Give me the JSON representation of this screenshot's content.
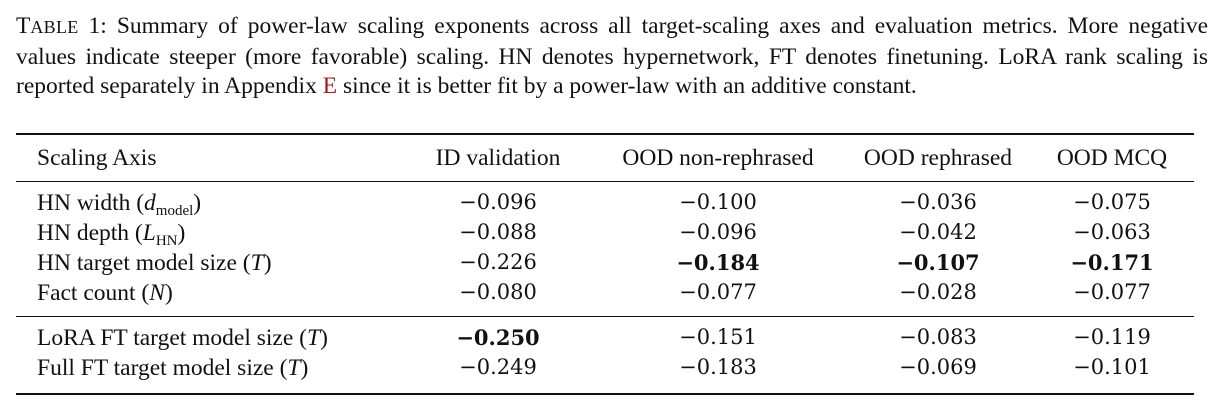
{
  "caption": {
    "label_first": "T",
    "label_rest": "ABLE",
    "label_num": "1:",
    "text_1": "Summary of power-law scaling exponents across all target-scaling axes and evaluation metrics. More negative values indicate steeper (more favorable) scaling. HN denotes hypernetwork, FT denotes finetuning. LoRA rank scaling is reported separately in Appendix",
    "appendix_ref": "E",
    "text_2": "since it is better fit by a power-law with an additive constant."
  },
  "table": {
    "headers": [
      "Scaling Axis",
      "ID validation",
      "OOD non-rephrased",
      "OOD rephrased",
      "OOD MCQ"
    ],
    "rows": [
      {
        "axis_prefix": "HN width (",
        "symbol": "d",
        "subscript": "model",
        "axis_suffix": ")",
        "values": [
          "−0.096",
          "−0.100",
          "−0.036",
          "−0.075"
        ]
      },
      {
        "axis_prefix": "HN depth (",
        "symbol": "L",
        "subscript": "HN",
        "axis_suffix": ")",
        "values": [
          "−0.088",
          "−0.096",
          "−0.042",
          "−0.063"
        ]
      },
      {
        "axis_prefix": "HN target model size (",
        "symbol": "T",
        "subscript": "",
        "axis_suffix": ")",
        "values": [
          "−0.226",
          "−0.184",
          "−0.107",
          "−0.171"
        ]
      },
      {
        "axis_prefix": "Fact count (",
        "symbol": "N",
        "subscript": "",
        "axis_suffix": ")",
        "values": [
          "−0.080",
          "−0.077",
          "−0.028",
          "−0.077"
        ]
      },
      {
        "axis_prefix": "LoRA FT target model size (",
        "symbol": "T",
        "subscript": "",
        "axis_suffix": ")",
        "values": [
          "−0.250",
          "−0.151",
          "−0.083",
          "−0.119"
        ]
      },
      {
        "axis_prefix": "Full FT target model size (",
        "symbol": "T",
        "subscript": "",
        "axis_suffix": ")",
        "values": [
          "−0.249",
          "−0.183",
          "−0.069",
          "−0.101"
        ]
      }
    ]
  }
}
